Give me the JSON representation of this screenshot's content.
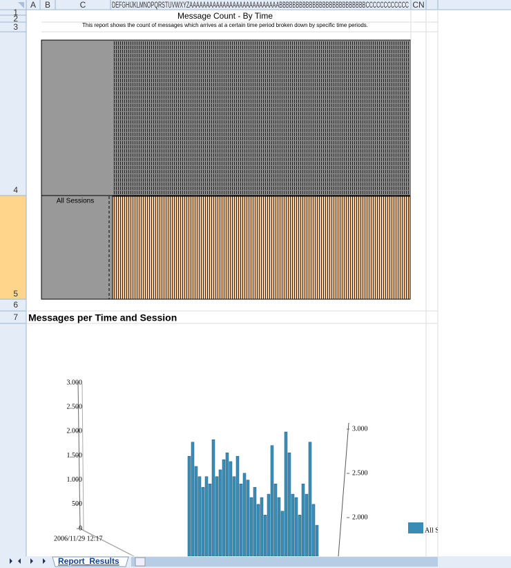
{
  "columns": [
    "A",
    "B",
    "C",
    "DEFGHIJKLMNOPQRSTUVWXYZAAAAAAAAAAAAAAAAAAAAAAAAAAABBBBBBBBBBBBBBBBBBBBBBBBBBCCCCCCCCCCCC",
    "CN"
  ],
  "rows": [
    "1",
    "2",
    "3",
    "4",
    "5",
    "6",
    "7"
  ],
  "report": {
    "title": "Message Count - By Time",
    "subtitle": "This report shows the count of messages which arrives at a certain time period broken down by specific time periods.",
    "row_label": "All Sessions"
  },
  "chart": {
    "type": "bar3d",
    "title": "Messages per Time and Session",
    "category_label": "2006/11/29 12:17",
    "ylim": [
      0,
      3000
    ],
    "yticks": [
      {
        "value": 3000,
        "label": "3.000"
      },
      {
        "value": 2500,
        "label": "2.500"
      },
      {
        "value": 2000,
        "label": "2.000"
      },
      {
        "value": 1500,
        "label": "1.500"
      },
      {
        "value": 1000,
        "label": "1.000"
      },
      500,
      0
    ],
    "y2ticks": [
      {
        "value": 3000,
        "label": "3.000"
      },
      {
        "value": 2500,
        "label": "2.500"
      },
      {
        "value": 2000,
        "label": "2.000"
      }
    ],
    "series": [
      {
        "name": "All Sessions",
        "color": "#3b8cb4",
        "values": [
          1490,
          1780,
          1280,
          1070,
          850,
          1070,
          920,
          1830,
          1070,
          1210,
          1420,
          1560,
          1380,
          1070,
          1490,
          920,
          1140,
          1000,
          640,
          850,
          500,
          640,
          280,
          710,
          1710,
          920,
          640,
          360,
          1990,
          1560,
          710,
          640,
          280,
          920,
          710,
          1780,
          500,
          70
        ]
      }
    ]
  },
  "tabs": [
    "Report_Results"
  ]
}
